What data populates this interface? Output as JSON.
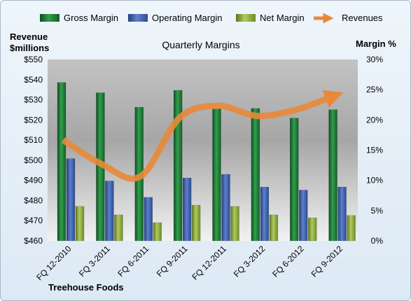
{
  "chart_data": {
    "type": "bar",
    "title": "Quarterly Margins",
    "categories": [
      "FQ 12-2010",
      "FQ 3-2011",
      "FQ 6-2011",
      "FQ 9-2011",
      "FQ 12-2011",
      "FQ 3-2012",
      "FQ 6-2012",
      "FQ 9-2012"
    ],
    "series": [
      {
        "name": "Gross Margin",
        "axis": "right",
        "unit": "%",
        "values": [
          26.2,
          24.5,
          22.1,
          24.9,
          21.9,
          21.9,
          20.3,
          21.7
        ],
        "color": "#1f7a36"
      },
      {
        "name": "Operating Margin",
        "axis": "right",
        "unit": "%",
        "values": [
          13.6,
          9.9,
          7.2,
          10.4,
          11.0,
          8.9,
          8.4,
          8.9
        ],
        "color": "#3f63b4"
      },
      {
        "name": "Net Margin",
        "axis": "right",
        "unit": "%",
        "values": [
          5.7,
          4.3,
          3.0,
          5.9,
          5.7,
          4.3,
          3.8,
          4.2
        ],
        "color": "#8fae3c"
      },
      {
        "name": "Revenues",
        "axis": "left",
        "type": "line",
        "values": [
          510,
          498,
          492,
          521,
          527,
          522,
          525,
          532
        ],
        "color": "#e8893a"
      }
    ],
    "y_left": {
      "label": "Revenue $millions",
      "label_lines": [
        "Revenue",
        "$millions"
      ],
      "min": 460,
      "max": 550,
      "step": 10,
      "tick_prefix": "$"
    },
    "y_right": {
      "label": "Margin %",
      "min": 0,
      "max": 30,
      "step": 5,
      "tick_suffix": "%"
    },
    "legend_position": "top",
    "grid": false,
    "footer_label": "Treehouse Foods"
  }
}
